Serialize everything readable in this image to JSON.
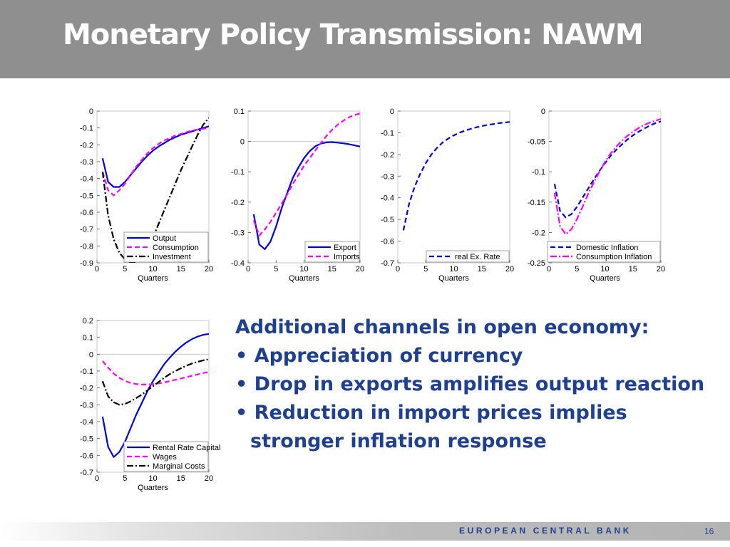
{
  "slide": {
    "title": "Monetary Policy Transmission: NAWM",
    "text": {
      "heading": "Additional channels in open economy:",
      "bullets": [
        "Appreciation of currency",
        "Drop in exports amplifies output reaction",
        "Reduction in import prices implies stronger inflation response"
      ]
    },
    "footer": {
      "organization": "EUROPEAN CENTRAL BANK",
      "page_number": "16"
    }
  },
  "colors": {
    "header_bg": "#8f8f8f",
    "title_text": "#ffffff",
    "text_accent": "#1f3f8f",
    "series_blue": "#0000dd",
    "series_magenta": "#ff00ff",
    "series_black": "#000000"
  },
  "chart_data": [
    {
      "type": "line",
      "xlabel": "Quarters",
      "xlim": [
        0,
        20
      ],
      "ylim": [
        -0.9,
        0
      ],
      "xticks": [
        0,
        5,
        10,
        15,
        20
      ],
      "yticks": [
        0,
        -0.1,
        -0.2,
        -0.3,
        -0.4,
        -0.5,
        -0.6,
        -0.7,
        -0.8,
        -0.9
      ],
      "legend_position": "bottom-right",
      "series": [
        {
          "name": "Output",
          "style": "solid",
          "color": "#0000dd",
          "x": [
            1,
            2,
            3,
            4,
            5,
            6,
            7,
            8,
            9,
            10,
            11,
            12,
            13,
            14,
            15,
            16,
            17,
            18,
            19,
            20
          ],
          "y": [
            -0.28,
            -0.42,
            -0.45,
            -0.45,
            -0.42,
            -0.38,
            -0.34,
            -0.3,
            -0.265,
            -0.235,
            -0.21,
            -0.19,
            -0.17,
            -0.155,
            -0.14,
            -0.13,
            -0.12,
            -0.11,
            -0.1,
            -0.09
          ]
        },
        {
          "name": "Consumption",
          "style": "dashed",
          "color": "#ff00ff",
          "x": [
            1,
            2,
            3,
            4,
            5,
            6,
            7,
            8,
            9,
            10,
            11,
            12,
            13,
            14,
            15,
            16,
            17,
            18,
            19,
            20
          ],
          "y": [
            -0.36,
            -0.47,
            -0.5,
            -0.47,
            -0.43,
            -0.38,
            -0.33,
            -0.29,
            -0.25,
            -0.22,
            -0.195,
            -0.175,
            -0.16,
            -0.145,
            -0.135,
            -0.125,
            -0.115,
            -0.11,
            -0.105,
            -0.1
          ]
        },
        {
          "name": "Investment",
          "style": "dashdot",
          "color": "#000000",
          "x": [
            1,
            2,
            3,
            4,
            5,
            6,
            7,
            8,
            9,
            10,
            11,
            12,
            13,
            14,
            15,
            16,
            17,
            18,
            19,
            20
          ],
          "y": [
            -0.36,
            -0.62,
            -0.76,
            -0.84,
            -0.88,
            -0.9,
            -0.9,
            -0.87,
            -0.82,
            -0.75,
            -0.67,
            -0.59,
            -0.51,
            -0.43,
            -0.35,
            -0.28,
            -0.21,
            -0.14,
            -0.08,
            -0.04
          ]
        }
      ]
    },
    {
      "type": "line",
      "xlabel": "Quarters",
      "xlim": [
        0,
        20
      ],
      "ylim": [
        -0.4,
        0.1
      ],
      "xticks": [
        0,
        5,
        10,
        15,
        20
      ],
      "yticks": [
        0.1,
        0,
        -0.1,
        -0.2,
        -0.3,
        -0.4
      ],
      "legend_position": "bottom-right",
      "series": [
        {
          "name": "Export",
          "style": "solid",
          "color": "#0000dd",
          "x": [
            1,
            2,
            3,
            4,
            5,
            6,
            7,
            8,
            9,
            10,
            11,
            12,
            13,
            14,
            15,
            16,
            17,
            18,
            19,
            20
          ],
          "y": [
            -0.24,
            -0.34,
            -0.355,
            -0.33,
            -0.28,
            -0.22,
            -0.17,
            -0.12,
            -0.085,
            -0.055,
            -0.032,
            -0.016,
            -0.007,
            -0.003,
            -0.002,
            -0.004,
            -0.006,
            -0.009,
            -0.013,
            -0.017
          ]
        },
        {
          "name": "Imports",
          "style": "dashed",
          "color": "#ff00ff",
          "x": [
            1,
            2,
            3,
            4,
            5,
            6,
            7,
            8,
            9,
            10,
            11,
            12,
            13,
            14,
            15,
            16,
            17,
            18,
            19,
            20
          ],
          "y": [
            -0.26,
            -0.31,
            -0.29,
            -0.265,
            -0.235,
            -0.205,
            -0.175,
            -0.14,
            -0.11,
            -0.08,
            -0.055,
            -0.03,
            -0.005,
            0.018,
            0.038,
            0.055,
            0.068,
            0.079,
            0.087,
            0.092
          ]
        }
      ]
    },
    {
      "type": "line",
      "xlabel": "Quarters",
      "xlim": [
        0,
        20
      ],
      "ylim": [
        -0.7,
        0
      ],
      "xticks": [
        0,
        5,
        10,
        15,
        20
      ],
      "yticks": [
        0,
        -0.1,
        -0.2,
        -0.3,
        -0.4,
        -0.5,
        -0.6,
        -0.7
      ],
      "legend_position": "bottom-right",
      "series": [
        {
          "name": "real Ex. Rate",
          "style": "dashed",
          "color": "#0000dd",
          "x": [
            1,
            2,
            3,
            4,
            5,
            6,
            7,
            8,
            9,
            10,
            11,
            12,
            13,
            14,
            15,
            16,
            17,
            18,
            19,
            20
          ],
          "y": [
            -0.55,
            -0.43,
            -0.35,
            -0.29,
            -0.24,
            -0.2,
            -0.17,
            -0.145,
            -0.127,
            -0.112,
            -0.1,
            -0.09,
            -0.082,
            -0.075,
            -0.069,
            -0.064,
            -0.06,
            -0.056,
            -0.053,
            -0.05
          ]
        }
      ]
    },
    {
      "type": "line",
      "xlabel": "Quarters",
      "xlim": [
        0,
        20
      ],
      "ylim": [
        -0.25,
        0
      ],
      "xticks": [
        0,
        5,
        10,
        15,
        20
      ],
      "yticks": [
        0,
        -0.05,
        -0.1,
        -0.15,
        -0.2,
        -0.25
      ],
      "legend_position": "bottom-right",
      "series": [
        {
          "name": "Domestic Inflation",
          "style": "dashed",
          "color": "#0000dd",
          "x": [
            1,
            2,
            3,
            4,
            5,
            6,
            7,
            8,
            9,
            10,
            11,
            12,
            13,
            14,
            15,
            16,
            17,
            18,
            19,
            20
          ],
          "y": [
            -0.12,
            -0.165,
            -0.175,
            -0.17,
            -0.158,
            -0.143,
            -0.128,
            -0.113,
            -0.099,
            -0.086,
            -0.074,
            -0.064,
            -0.055,
            -0.047,
            -0.04,
            -0.034,
            -0.029,
            -0.024,
            -0.02,
            -0.017
          ]
        },
        {
          "name": "Consumption Inflation",
          "style": "dashdot",
          "color": "#ff00ff",
          "x": [
            1,
            2,
            3,
            4,
            5,
            6,
            7,
            8,
            9,
            10,
            11,
            12,
            13,
            14,
            15,
            16,
            17,
            18,
            19,
            20
          ],
          "y": [
            -0.135,
            -0.19,
            -0.203,
            -0.195,
            -0.178,
            -0.158,
            -0.137,
            -0.118,
            -0.1,
            -0.084,
            -0.07,
            -0.059,
            -0.049,
            -0.041,
            -0.034,
            -0.028,
            -0.023,
            -0.019,
            -0.016,
            -0.013
          ]
        }
      ]
    },
    {
      "type": "line",
      "xlabel": "Quarters",
      "xlim": [
        0,
        20
      ],
      "ylim": [
        -0.7,
        0.2
      ],
      "xticks": [
        0,
        5,
        10,
        15,
        20
      ],
      "yticks": [
        0.2,
        0.1,
        0,
        -0.1,
        -0.2,
        -0.3,
        -0.4,
        -0.5,
        -0.6,
        -0.7
      ],
      "legend_position": "bottom-right",
      "series": [
        {
          "name": "Rental Rate Capital",
          "style": "solid",
          "color": "#0000dd",
          "x": [
            1,
            2,
            3,
            4,
            5,
            6,
            7,
            8,
            9,
            10,
            11,
            12,
            13,
            14,
            15,
            16,
            17,
            18,
            19,
            20
          ],
          "y": [
            -0.37,
            -0.55,
            -0.61,
            -0.58,
            -0.52,
            -0.44,
            -0.36,
            -0.29,
            -0.22,
            -0.16,
            -0.11,
            -0.06,
            -0.02,
            0.015,
            0.045,
            0.07,
            0.09,
            0.105,
            0.115,
            0.12
          ]
        },
        {
          "name": "Wages",
          "style": "dashed",
          "color": "#ff00ff",
          "x": [
            1,
            2,
            3,
            4,
            5,
            6,
            7,
            8,
            9,
            10,
            11,
            12,
            13,
            14,
            15,
            16,
            17,
            18,
            19,
            20
          ],
          "y": [
            -0.04,
            -0.08,
            -0.115,
            -0.14,
            -0.158,
            -0.17,
            -0.177,
            -0.18,
            -0.18,
            -0.178,
            -0.173,
            -0.167,
            -0.16,
            -0.152,
            -0.144,
            -0.136,
            -0.128,
            -0.12,
            -0.112,
            -0.105
          ]
        },
        {
          "name": "Marginal Costs",
          "style": "dashdot",
          "color": "#000000",
          "x": [
            1,
            2,
            3,
            4,
            5,
            6,
            7,
            8,
            9,
            10,
            11,
            12,
            13,
            14,
            15,
            16,
            17,
            18,
            19,
            20
          ],
          "y": [
            -0.16,
            -0.25,
            -0.285,
            -0.3,
            -0.295,
            -0.28,
            -0.26,
            -0.24,
            -0.215,
            -0.19,
            -0.165,
            -0.14,
            -0.118,
            -0.1,
            -0.083,
            -0.068,
            -0.055,
            -0.045,
            -0.036,
            -0.03
          ]
        }
      ]
    }
  ]
}
